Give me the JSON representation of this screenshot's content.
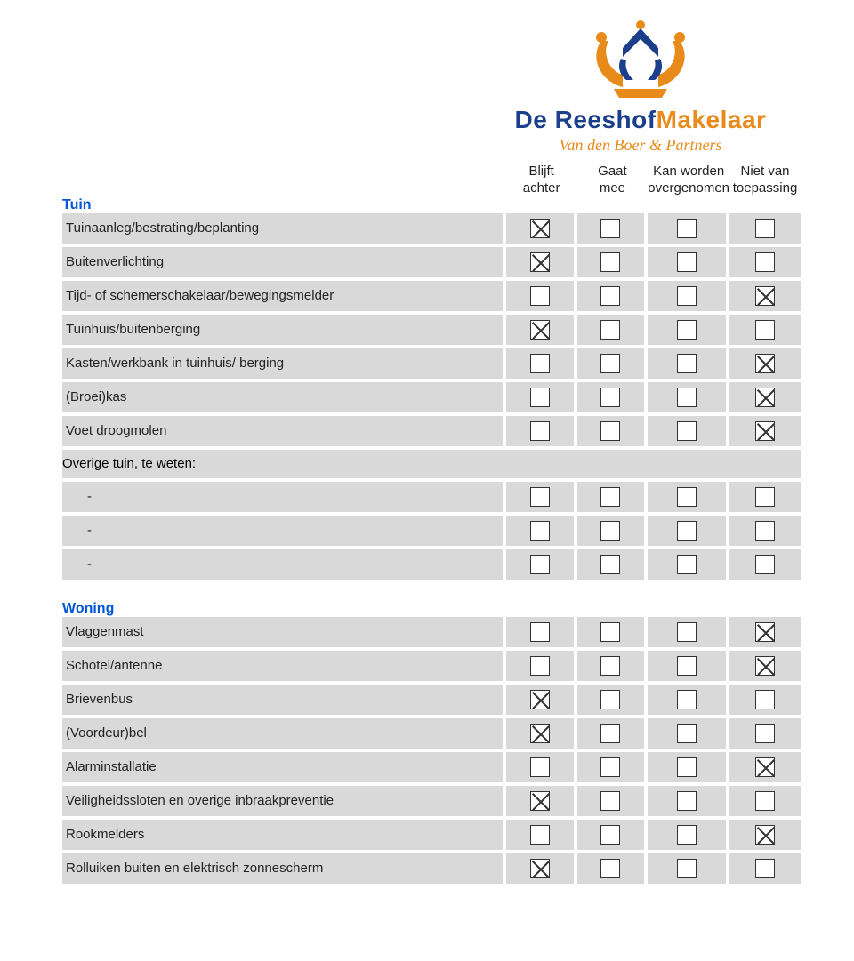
{
  "logo": {
    "line1_de": "De ",
    "line1_reeshof": "Reeshof",
    "line1_makelaar": "Makelaar",
    "line2": "Van den Boer & Partners",
    "colors": {
      "blue": "#1b3f8a",
      "orange": "#e88b1a"
    }
  },
  "headers": {
    "c1a": "Blijft",
    "c1b": "achter",
    "c2a": "Gaat",
    "c2b": "mee",
    "c3a": "Kan worden",
    "c3b": "overgenomen",
    "c4a": "Niet van",
    "c4b": "toepassing"
  },
  "sections": {
    "tuin": {
      "title": "Tuin",
      "items": [
        {
          "label": "Tuinaanleg/bestrating/beplanting",
          "checks": [
            true,
            false,
            false,
            false
          ]
        },
        {
          "label": "Buitenverlichting",
          "checks": [
            true,
            false,
            false,
            false
          ]
        },
        {
          "label": "Tijd- of schemerschakelaar/bewegingsmelder",
          "checks": [
            false,
            false,
            false,
            true
          ]
        },
        {
          "label": "Tuinhuis/buitenberging",
          "checks": [
            true,
            false,
            false,
            false
          ]
        },
        {
          "label": "Kasten/werkbank in tuinhuis/ berging",
          "checks": [
            false,
            false,
            false,
            true
          ]
        },
        {
          "label": "(Broei)kas",
          "checks": [
            false,
            false,
            false,
            true
          ]
        },
        {
          "label": "Voet droogmolen",
          "checks": [
            false,
            false,
            false,
            true
          ]
        }
      ],
      "overige_label": "Overige tuin, te weten:",
      "overige_items": [
        {
          "label": "-",
          "checks": [
            false,
            false,
            false,
            false
          ]
        },
        {
          "label": "-",
          "checks": [
            false,
            false,
            false,
            false
          ]
        },
        {
          "label": "-",
          "checks": [
            false,
            false,
            false,
            false
          ]
        }
      ]
    },
    "woning": {
      "title": "Woning",
      "items": [
        {
          "label": "Vlaggenmast",
          "checks": [
            false,
            false,
            false,
            true
          ]
        },
        {
          "label": "Schotel/antenne",
          "checks": [
            false,
            false,
            false,
            true
          ]
        },
        {
          "label": "Brievenbus",
          "checks": [
            true,
            false,
            false,
            false
          ]
        },
        {
          "label": "(Voordeur)bel",
          "checks": [
            true,
            false,
            false,
            false
          ]
        },
        {
          "label": "Alarminstallatie",
          "checks": [
            false,
            false,
            false,
            true
          ]
        },
        {
          "label": "Veiligheidssloten en overige inbraakpreventie",
          "checks": [
            true,
            false,
            false,
            false
          ]
        },
        {
          "label": "Rookmelders",
          "checks": [
            false,
            false,
            false,
            true
          ]
        },
        {
          "label": "Rolluiken buiten en elektrisch zonnescherm",
          "checks": [
            true,
            false,
            false,
            false
          ]
        }
      ]
    }
  }
}
